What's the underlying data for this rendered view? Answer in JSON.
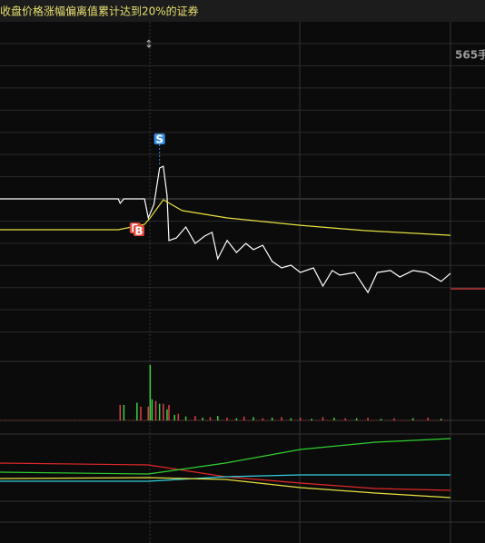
{
  "chart_data": [
    {
      "type": "line",
      "title": "收盘价格涨幅偏离值累计达到20%的证券",
      "side_label": "565手",
      "xlim": [
        0,
        240
      ],
      "ylim": [
        -7,
        7
      ],
      "series": [
        {
          "color": "#ffffff",
          "x": [
            0,
            63,
            64,
            66,
            77,
            79,
            82,
            85,
            87,
            89,
            90,
            94,
            99,
            104,
            109,
            113,
            116,
            121,
            126,
            131,
            135,
            140,
            145,
            150,
            155,
            160,
            167,
            172,
            177,
            181,
            189,
            196,
            201,
            208,
            213,
            220,
            227,
            235,
            240
          ],
          "values": [
            0,
            0,
            -0.2,
            0,
            0,
            -0.86,
            -0.25,
            1.39,
            1.47,
            0.16,
            -1.88,
            -1.76,
            -1.27,
            -2.01,
            -1.68,
            -1.51,
            -2.7,
            -1.88,
            -2.42,
            -2.01,
            -2.29,
            -2.09,
            -2.82,
            -3.11,
            -2.99,
            -3.32,
            -3.11,
            -3.93,
            -3.23,
            -3.44,
            -3.32,
            -4.22,
            -3.32,
            -3.23,
            -3.52,
            -3.23,
            -3.32,
            -3.72,
            -3.36
          ]
        },
        {
          "color": "#e8e040",
          "x": [
            0,
            63,
            77,
            80,
            87,
            97,
            121,
            160,
            194,
            240
          ],
          "values": [
            -1.39,
            -1.39,
            -1.15,
            -0.86,
            -0.04,
            -0.53,
            -0.86,
            -1.19,
            -1.43,
            -1.64
          ]
        }
      ],
      "annotations": [
        {
          "label": "S",
          "x": 85,
          "color": "#3a8ee6"
        },
        {
          "label": "B",
          "x": 72,
          "color": "#e04a3a"
        },
        {
          "label": "B",
          "x": 74,
          "color": "#e04a3a"
        }
      ]
    },
    {
      "type": "bar",
      "xlim": [
        0,
        240
      ],
      "ylim": [
        0,
        100
      ],
      "series": [
        {
          "color": "#e0404a",
          "x": [
            64,
            75,
            79,
            83,
            87,
            90,
            95,
            104,
            112,
            121,
            130,
            140,
            150,
            160,
            172,
            184,
            196,
            210,
            228
          ],
          "values": [
            28,
            25,
            25,
            35,
            30,
            28,
            12,
            8,
            6,
            5,
            7,
            4,
            6,
            5,
            6,
            4,
            5,
            4,
            5
          ]
        },
        {
          "color": "#40d040",
          "x": [
            66,
            73,
            80,
            81,
            85,
            89,
            93,
            99,
            108,
            116,
            126,
            135,
            145,
            155,
            166,
            178,
            190,
            203,
            220,
            235
          ],
          "values": [
            28,
            32,
            100,
            38,
            30,
            20,
            10,
            7,
            5,
            8,
            4,
            6,
            5,
            4,
            3,
            5,
            4,
            3,
            4,
            3
          ]
        }
      ]
    },
    {
      "type": "line",
      "xlim": [
        0,
        240
      ],
      "ylim": [
        0,
        100
      ],
      "series": [
        {
          "color": "#e02828",
          "x": [
            0,
            79,
            120,
            160,
            200,
            240
          ],
          "values": [
            58.3,
            55.6,
            37.5,
            27.8,
            19.4,
            16.7
          ]
        },
        {
          "color": "#30d030",
          "x": [
            0,
            79,
            120,
            160,
            200,
            240
          ],
          "values": [
            44.4,
            41.7,
            58.3,
            79.2,
            90.3,
            95.8
          ]
        },
        {
          "color": "#30d0e0",
          "x": [
            0,
            79,
            120,
            160,
            200,
            240
          ],
          "values": [
            30.6,
            30.6,
            37.5,
            40.3,
            40.3,
            40.3
          ]
        },
        {
          "color": "#e8e040",
          "x": [
            0,
            79,
            120,
            160,
            200,
            240
          ],
          "values": [
            34.7,
            36.1,
            33.3,
            20.8,
            12.5,
            5.6
          ]
        }
      ]
    }
  ]
}
